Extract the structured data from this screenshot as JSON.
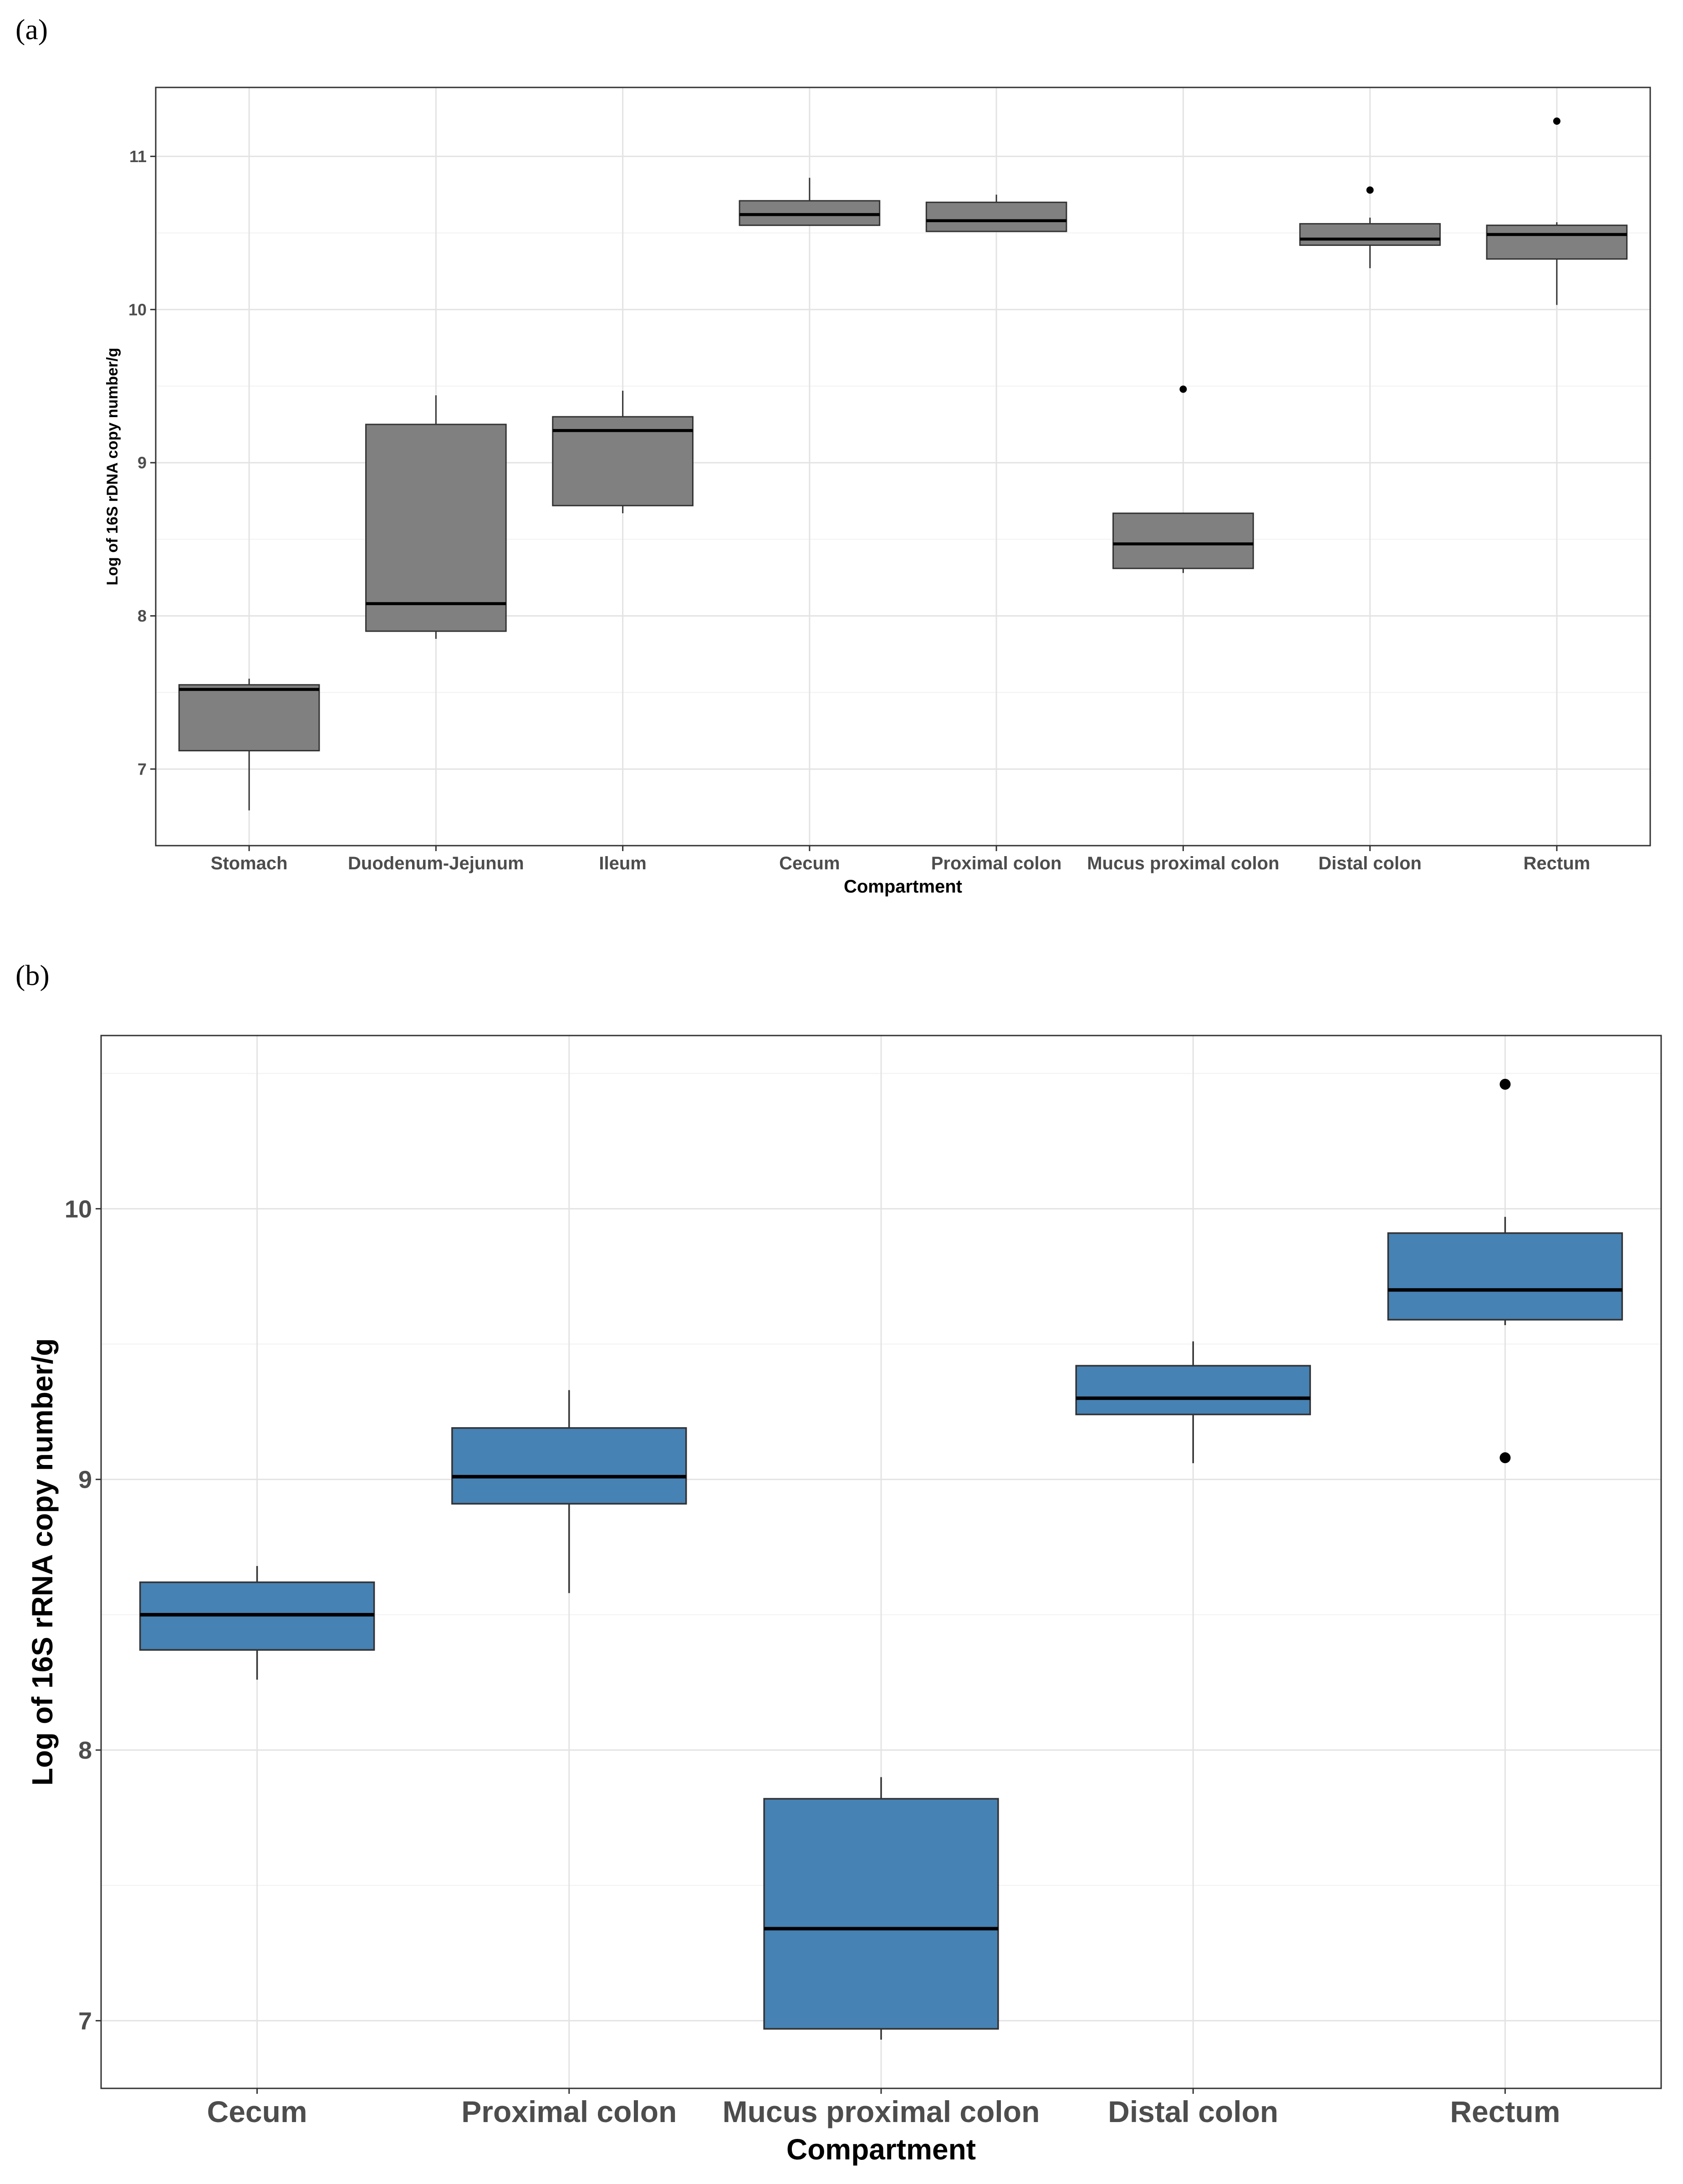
{
  "panels": {
    "a": {
      "label": "(a)"
    },
    "b": {
      "label": "(b)"
    }
  },
  "chart_data": [
    {
      "type": "box",
      "panel": "(a)",
      "title": "",
      "xlabel": "Compartment",
      "ylabel": "Log of 16S rDNA copy number/g",
      "ylim": [
        6.5,
        11.45
      ],
      "yticks": [
        7,
        8,
        9,
        10,
        11
      ],
      "grid": true,
      "fill_color": "#808080",
      "categories": [
        "Stomach",
        "Duodenum-Jejunum",
        "Ileum",
        "Cecum",
        "Proximal colon",
        "Mucus proximal colon",
        "Distal colon",
        "Rectum"
      ],
      "boxes": [
        {
          "category": "Stomach",
          "whisker_low": 6.73,
          "q1": 7.12,
          "median": 7.52,
          "q3": 7.55,
          "whisker_high": 7.59,
          "outliers": []
        },
        {
          "category": "Duodenum-Jejunum",
          "whisker_low": 7.85,
          "q1": 7.9,
          "median": 8.08,
          "q3": 9.25,
          "whisker_high": 9.44,
          "outliers": []
        },
        {
          "category": "Ileum",
          "whisker_low": 8.67,
          "q1": 8.72,
          "median": 9.21,
          "q3": 9.3,
          "whisker_high": 9.47,
          "outliers": []
        },
        {
          "category": "Cecum",
          "whisker_low": 10.55,
          "q1": 10.55,
          "median": 10.62,
          "q3": 10.71,
          "whisker_high": 10.86,
          "outliers": []
        },
        {
          "category": "Proximal colon",
          "whisker_low": 10.51,
          "q1": 10.51,
          "median": 10.58,
          "q3": 10.7,
          "whisker_high": 10.75,
          "outliers": []
        },
        {
          "category": "Mucus proximal colon",
          "whisker_low": 8.28,
          "q1": 8.31,
          "median": 8.47,
          "q3": 8.67,
          "whisker_high": 8.67,
          "outliers": [
            9.48
          ]
        },
        {
          "category": "Distal colon",
          "whisker_low": 10.27,
          "q1": 10.42,
          "median": 10.46,
          "q3": 10.56,
          "whisker_high": 10.6,
          "outliers": [
            10.78
          ]
        },
        {
          "category": "Rectum",
          "whisker_low": 10.03,
          "q1": 10.33,
          "median": 10.49,
          "q3": 10.55,
          "whisker_high": 10.57,
          "outliers": [
            11.23
          ]
        }
      ]
    },
    {
      "type": "box",
      "panel": "(b)",
      "title": "",
      "xlabel": "Compartment",
      "ylabel": "Log of 16S rRNA copy number/g",
      "ylim": [
        6.75,
        10.64
      ],
      "yticks": [
        7,
        8,
        9,
        10
      ],
      "grid": true,
      "fill_color": "#4682b4",
      "categories": [
        "Cecum",
        "Proximal colon",
        "Mucus proximal colon",
        "Distal colon",
        "Rectum"
      ],
      "boxes": [
        {
          "category": "Cecum",
          "whisker_low": 8.26,
          "q1": 8.37,
          "median": 8.5,
          "q3": 8.62,
          "whisker_high": 8.68,
          "outliers": []
        },
        {
          "category": "Proximal colon",
          "whisker_low": 8.58,
          "q1": 8.91,
          "median": 9.01,
          "q3": 9.19,
          "whisker_high": 9.33,
          "outliers": []
        },
        {
          "category": "Mucus proximal colon",
          "whisker_low": 6.93,
          "q1": 6.97,
          "median": 7.34,
          "q3": 7.82,
          "whisker_high": 7.9,
          "outliers": []
        },
        {
          "category": "Distal colon",
          "whisker_low": 9.06,
          "q1": 9.24,
          "median": 9.3,
          "q3": 9.42,
          "whisker_high": 9.51,
          "outliers": []
        },
        {
          "category": "Rectum",
          "whisker_low": 9.57,
          "q1": 9.59,
          "median": 9.7,
          "q3": 9.91,
          "whisker_high": 9.97,
          "outliers": [
            10.46,
            9.08
          ]
        }
      ]
    }
  ]
}
